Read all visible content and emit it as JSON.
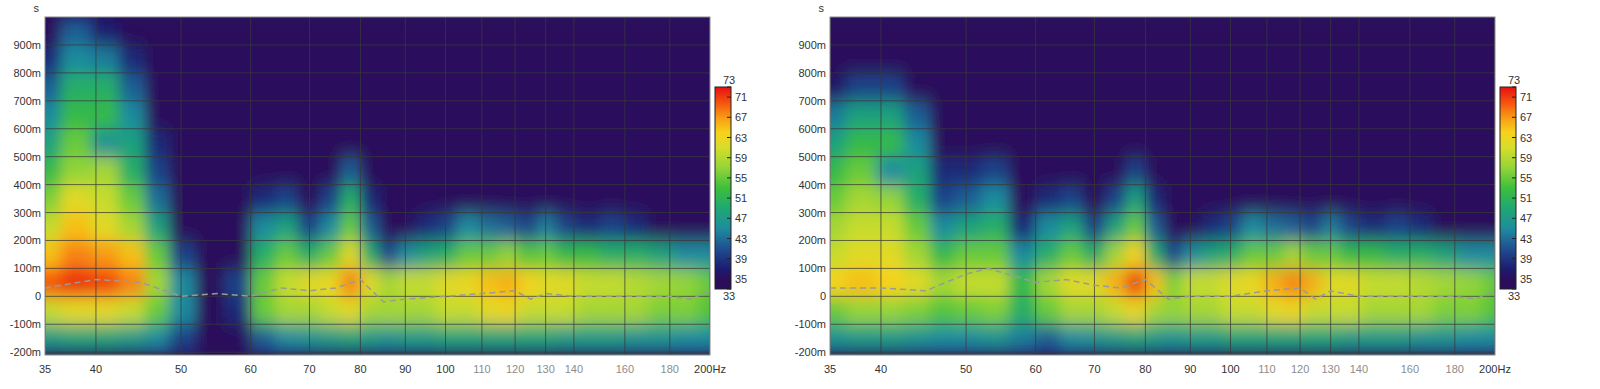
{
  "chart_data": [
    {
      "type": "heatmap",
      "y_label": "s",
      "log": "x",
      "grid": true,
      "xlim": [
        35,
        200
      ],
      "ylim": [
        -0.21,
        1.0
      ],
      "xticks": [
        35,
        40,
        50,
        60,
        70,
        80,
        90,
        100,
        110,
        120,
        130,
        140,
        160,
        180,
        {
          "value": 200,
          "label": "200Hz"
        }
      ],
      "yticks": [
        {
          "value": -0.2,
          "label": "-200m"
        },
        {
          "value": -0.1,
          "label": "-100m"
        },
        0,
        {
          "value": 0.1,
          "label": "100m"
        },
        {
          "value": 0.2,
          "label": "200m"
        },
        {
          "value": 0.3,
          "label": "300m"
        },
        {
          "value": 0.4,
          "label": "400m"
        },
        {
          "value": 0.5,
          "label": "500m"
        },
        {
          "value": 0.6,
          "label": "600m"
        },
        {
          "value": 0.7,
          "label": "700m"
        },
        {
          "value": 0.8,
          "label": "800m"
        },
        {
          "value": 0.9,
          "label": "900m"
        }
      ],
      "color_range": [
        33,
        73
      ],
      "color_ticks": [
        33,
        35,
        39,
        43,
        47,
        51,
        55,
        59,
        63,
        67,
        71,
        73
      ],
      "x": [
        35,
        38,
        41,
        44,
        47,
        50,
        54,
        58,
        62,
        66,
        70,
        74,
        78,
        82,
        86,
        90,
        95,
        100,
        106,
        112,
        118,
        124,
        130,
        137,
        145,
        155,
        165,
        175,
        188,
        200
      ],
      "y": [
        -0.15,
        -0.05,
        0.05,
        0.15,
        0.25,
        0.35,
        0.45,
        0.55,
        0.65,
        0.75,
        0.85,
        0.95
      ],
      "cells": [
        [
          47,
          48,
          48,
          47,
          45,
          40,
          33,
          33,
          42,
          45,
          46,
          47,
          48,
          47,
          46,
          47,
          47,
          48,
          48,
          48,
          48,
          48,
          48,
          47,
          47,
          47,
          46,
          46,
          45,
          45
        ],
        [
          60,
          62,
          62,
          60,
          55,
          45,
          33,
          38,
          55,
          58,
          58,
          60,
          62,
          58,
          58,
          58,
          58,
          60,
          60,
          62,
          63,
          60,
          60,
          60,
          58,
          58,
          58,
          56,
          56,
          54
        ],
        [
          70,
          72,
          71,
          68,
          58,
          45,
          33,
          40,
          55,
          60,
          62,
          63,
          68,
          62,
          58,
          60,
          60,
          62,
          63,
          65,
          66,
          64,
          62,
          62,
          60,
          60,
          59,
          58,
          57,
          55
        ],
        [
          65,
          68,
          67,
          65,
          55,
          40,
          33,
          33,
          50,
          55,
          50,
          55,
          62,
          50,
          40,
          45,
          48,
          50,
          55,
          55,
          57,
          54,
          55,
          52,
          52,
          50,
          50,
          48,
          45,
          45
        ],
        [
          60,
          65,
          62,
          58,
          48,
          33,
          33,
          33,
          45,
          48,
          40,
          45,
          55,
          42,
          33,
          35,
          38,
          40,
          45,
          43,
          42,
          40,
          44,
          40,
          38,
          40,
          38,
          35,
          35,
          33
        ],
        [
          56,
          62,
          60,
          55,
          43,
          33,
          33,
          33,
          38,
          40,
          33,
          40,
          50,
          38,
          33,
          33,
          33,
          33,
          35,
          33,
          33,
          33,
          33,
          33,
          33,
          33,
          33,
          33,
          33,
          33
        ],
        [
          52,
          57,
          58,
          50,
          40,
          33,
          33,
          33,
          33,
          33,
          33,
          33,
          42,
          33,
          33,
          33,
          33,
          33,
          33,
          33,
          33,
          33,
          33,
          33,
          33,
          33,
          33,
          33,
          33,
          33
        ],
        [
          48,
          55,
          46,
          48,
          38,
          33,
          33,
          33,
          33,
          33,
          33,
          33,
          33,
          33,
          33,
          33,
          33,
          33,
          33,
          33,
          33,
          33,
          33,
          33,
          33,
          33,
          33,
          33,
          33,
          33
        ],
        [
          45,
          52,
          52,
          45,
          35,
          33,
          33,
          33,
          33,
          33,
          33,
          33,
          33,
          33,
          33,
          33,
          33,
          33,
          33,
          33,
          33,
          33,
          33,
          33,
          33,
          33,
          33,
          33,
          33,
          33
        ],
        [
          42,
          50,
          50,
          42,
          33,
          33,
          33,
          33,
          33,
          33,
          33,
          33,
          33,
          33,
          33,
          33,
          33,
          33,
          33,
          33,
          33,
          33,
          33,
          33,
          33,
          33,
          33,
          33,
          33,
          33
        ],
        [
          38,
          45,
          44,
          38,
          33,
          33,
          33,
          33,
          33,
          33,
          33,
          33,
          33,
          33,
          33,
          33,
          33,
          33,
          33,
          33,
          33,
          33,
          33,
          33,
          33,
          33,
          33,
          33,
          33,
          33
        ],
        [
          33,
          42,
          37,
          35,
          33,
          33,
          33,
          33,
          33,
          33,
          33,
          33,
          33,
          33,
          33,
          33,
          33,
          33,
          33,
          33,
          33,
          33,
          33,
          33,
          33,
          33,
          33,
          33,
          33,
          33
        ]
      ],
      "series": [
        {
          "type": "line",
          "line_style": "dashed",
          "color": "#9a9a9a",
          "x": [
            35,
            40,
            45,
            50,
            55,
            60,
            65,
            70,
            75,
            80,
            85,
            90,
            100,
            110,
            120,
            125,
            130,
            140,
            160,
            180,
            190,
            200
          ],
          "values": [
            0.03,
            0.06,
            0.05,
            0.0,
            0.01,
            0.0,
            0.03,
            0.02,
            0.03,
            0.06,
            -0.02,
            -0.01,
            0.0,
            0.01,
            0.02,
            -0.01,
            0.01,
            0.0,
            0.0,
            0.0,
            -0.01,
            0.02
          ]
        }
      ]
    },
    {
      "type": "heatmap",
      "y_label": "s",
      "log": "x",
      "grid": true,
      "xlim": [
        35,
        200
      ],
      "ylim": [
        -0.21,
        1.0
      ],
      "xticks": [
        35,
        40,
        50,
        60,
        70,
        80,
        90,
        100,
        110,
        120,
        130,
        140,
        160,
        180,
        {
          "value": 200,
          "label": "200Hz"
        }
      ],
      "yticks": [
        {
          "value": -0.2,
          "label": "-200m"
        },
        {
          "value": -0.1,
          "label": "-100m"
        },
        0,
        {
          "value": 0.1,
          "label": "100m"
        },
        {
          "value": 0.2,
          "label": "200m"
        },
        {
          "value": 0.3,
          "label": "300m"
        },
        {
          "value": 0.4,
          "label": "400m"
        },
        {
          "value": 0.5,
          "label": "500m"
        },
        {
          "value": 0.6,
          "label": "600m"
        },
        {
          "value": 0.7,
          "label": "700m"
        },
        {
          "value": 0.8,
          "label": "800m"
        },
        {
          "value": 0.9,
          "label": "900m"
        }
      ],
      "color_range": [
        33,
        73
      ],
      "color_ticks": [
        33,
        35,
        39,
        43,
        47,
        51,
        55,
        59,
        63,
        67,
        71,
        73
      ],
      "x": [
        35,
        38,
        41,
        44,
        47,
        50,
        54,
        58,
        62,
        66,
        70,
        74,
        78,
        82,
        86,
        90,
        95,
        100,
        106,
        112,
        118,
        124,
        130,
        137,
        145,
        155,
        165,
        175,
        188,
        200
      ],
      "y": [
        -0.15,
        -0.05,
        0.05,
        0.15,
        0.25,
        0.35,
        0.45,
        0.55,
        0.65,
        0.75,
        0.85,
        0.95
      ],
      "cells": [
        [
          46,
          47,
          47,
          46,
          45,
          45,
          46,
          44,
          42,
          45,
          46,
          47,
          48,
          47,
          46,
          47,
          47,
          48,
          48,
          48,
          48,
          48,
          48,
          47,
          47,
          47,
          46,
          46,
          45,
          45
        ],
        [
          55,
          57,
          57,
          56,
          54,
          55,
          56,
          50,
          55,
          58,
          58,
          60,
          63,
          58,
          57,
          58,
          58,
          60,
          60,
          62,
          63,
          60,
          60,
          60,
          58,
          58,
          58,
          56,
          56,
          54
        ],
        [
          64,
          65,
          64,
          62,
          58,
          60,
          60,
          52,
          58,
          62,
          62,
          66,
          72,
          65,
          56,
          60,
          60,
          62,
          63,
          66,
          68,
          66,
          62,
          62,
          60,
          60,
          59,
          58,
          57,
          55
        ],
        [
          60,
          62,
          62,
          58,
          52,
          55,
          55,
          45,
          50,
          55,
          50,
          58,
          64,
          50,
          40,
          45,
          48,
          50,
          55,
          55,
          58,
          55,
          55,
          52,
          52,
          50,
          50,
          48,
          45,
          45
        ],
        [
          58,
          60,
          60,
          55,
          45,
          48,
          50,
          38,
          45,
          48,
          40,
          48,
          55,
          42,
          33,
          35,
          38,
          40,
          45,
          43,
          42,
          40,
          44,
          40,
          38,
          40,
          38,
          35,
          35,
          33
        ],
        [
          55,
          58,
          57,
          50,
          40,
          42,
          45,
          33,
          38,
          40,
          33,
          40,
          48,
          38,
          33,
          33,
          33,
          33,
          35,
          33,
          33,
          33,
          33,
          33,
          33,
          33,
          33,
          33,
          33,
          33
        ],
        [
          52,
          55,
          45,
          48,
          38,
          38,
          40,
          33,
          33,
          33,
          33,
          33,
          40,
          33,
          33,
          33,
          33,
          33,
          33,
          33,
          33,
          33,
          33,
          33,
          33,
          33,
          33,
          33,
          33,
          33
        ],
        [
          48,
          52,
          52,
          45,
          35,
          33,
          35,
          33,
          33,
          33,
          33,
          33,
          33,
          33,
          33,
          33,
          33,
          33,
          33,
          33,
          33,
          33,
          33,
          33,
          33,
          33,
          33,
          33,
          33,
          33
        ],
        [
          44,
          48,
          48,
          42,
          33,
          33,
          33,
          33,
          33,
          33,
          33,
          33,
          33,
          33,
          33,
          33,
          33,
          33,
          33,
          33,
          33,
          33,
          33,
          33,
          33,
          33,
          33,
          33,
          33,
          33
        ],
        [
          36,
          40,
          40,
          35,
          33,
          33,
          33,
          33,
          33,
          33,
          33,
          33,
          33,
          33,
          33,
          33,
          33,
          33,
          33,
          33,
          33,
          33,
          33,
          33,
          33,
          33,
          33,
          33,
          33,
          33
        ],
        [
          33,
          33,
          33,
          33,
          33,
          33,
          33,
          33,
          33,
          33,
          33,
          33,
          33,
          33,
          33,
          33,
          33,
          33,
          33,
          33,
          33,
          33,
          33,
          33,
          33,
          33,
          33,
          33,
          33,
          33
        ],
        [
          33,
          33,
          33,
          33,
          33,
          33,
          33,
          33,
          33,
          33,
          33,
          33,
          33,
          33,
          33,
          33,
          33,
          33,
          33,
          33,
          33,
          33,
          33,
          33,
          33,
          33,
          33,
          33,
          33,
          33
        ]
      ],
      "series": [
        {
          "type": "line",
          "line_style": "dashed",
          "color": "#9a9a9a",
          "x": [
            35,
            40,
            45,
            50,
            53,
            60,
            65,
            70,
            75,
            80,
            85,
            90,
            100,
            110,
            120,
            125,
            130,
            140,
            160,
            180,
            190,
            200
          ],
          "values": [
            0.03,
            0.03,
            0.02,
            0.08,
            0.1,
            0.05,
            0.06,
            0.04,
            0.03,
            0.06,
            -0.01,
            0.0,
            0.0,
            0.02,
            0.03,
            -0.01,
            0.02,
            0.0,
            0.0,
            0.0,
            -0.01,
            0.02
          ]
        }
      ]
    }
  ]
}
